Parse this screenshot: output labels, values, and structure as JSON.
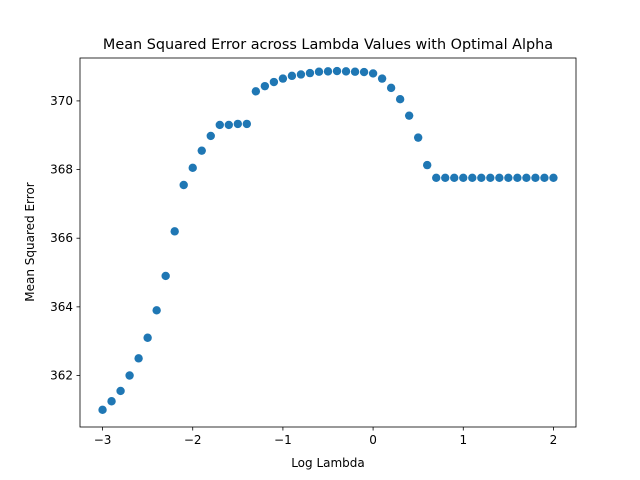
{
  "chart_data": {
    "type": "scatter",
    "title": "Mean Squared Error across Lambda Values with Optimal Alpha",
    "xlabel": "Log Lambda",
    "ylabel": "Mean Squared Error",
    "xlim": [
      -3.25,
      2.25
    ],
    "ylim": [
      360.5,
      371.25
    ],
    "xticks": [
      -3,
      -2,
      -1,
      0,
      1,
      2
    ],
    "yticks": [
      362,
      364,
      366,
      368,
      370
    ],
    "marker_color": "#1f77b4",
    "grid": false,
    "series": [
      {
        "x": [
          -3.0,
          -2.9,
          -2.8,
          -2.7,
          -2.6,
          -2.5,
          -2.4,
          -2.3,
          -2.2,
          -2.1,
          -2.0,
          -1.9,
          -1.8,
          -1.7,
          -1.6,
          -1.5,
          -1.4,
          -1.3,
          -1.2,
          -1.1,
          -1.0,
          -0.9,
          -0.8,
          -0.7,
          -0.6,
          -0.5,
          -0.4,
          -0.3,
          -0.2,
          -0.1,
          0.0,
          0.1,
          0.2,
          0.3,
          0.4,
          0.5,
          0.6,
          0.7,
          0.8,
          0.9,
          1.0,
          1.1,
          1.2,
          1.3,
          1.4,
          1.5,
          1.6,
          1.7,
          1.8,
          1.9,
          2.0
        ],
        "y": [
          361.0,
          361.25,
          361.55,
          362.0,
          362.5,
          363.1,
          363.9,
          364.9,
          366.2,
          367.55,
          368.05,
          368.55,
          368.98,
          369.3,
          369.3,
          369.33,
          369.33,
          370.28,
          370.43,
          370.55,
          370.65,
          370.73,
          370.77,
          370.81,
          370.85,
          370.86,
          370.87,
          370.86,
          370.85,
          370.84,
          370.8,
          370.65,
          370.38,
          370.05,
          369.57,
          368.93,
          368.13,
          367.76,
          367.76,
          367.76,
          367.76,
          367.76,
          367.76,
          367.76,
          367.76,
          367.76,
          367.76,
          367.76,
          367.76,
          367.76,
          367.76
        ]
      }
    ]
  }
}
